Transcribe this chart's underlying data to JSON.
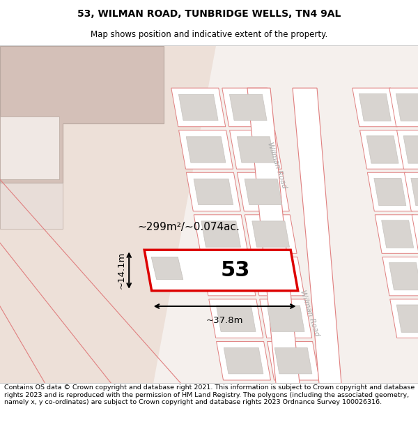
{
  "title_line1": "53, WILMAN ROAD, TUNBRIDGE WELLS, TN4 9AL",
  "title_line2": "Map shows position and indicative extent of the property.",
  "footer_text": "Contains OS data © Crown copyright and database right 2021. This information is subject to Crown copyright and database rights 2023 and is reproduced with the permission of HM Land Registry. The polygons (including the associated geometry, namely x, y co-ordinates) are subject to Crown copyright and database rights 2023 Ordnance Survey 100026316.",
  "area_label": "~299m²/~0.074ac.",
  "width_label": "~37.8m",
  "height_label": "~14.1m",
  "property_number": "53",
  "map_bg": "#f5f0ed",
  "plot_bg": "#ffffff",
  "plot_line": "#e08080",
  "bld_fill": "#d8d4d0",
  "bld_line": "#c8c4c0",
  "road_white": "#ffffff",
  "road_line": "#e08080",
  "corner_fill": "#d4c0b8",
  "left_open": "#ede0d8",
  "highlight_red": "#dd0000",
  "title_fontsize": 10,
  "subtitle_fontsize": 8.5,
  "footer_fontsize": 6.8
}
